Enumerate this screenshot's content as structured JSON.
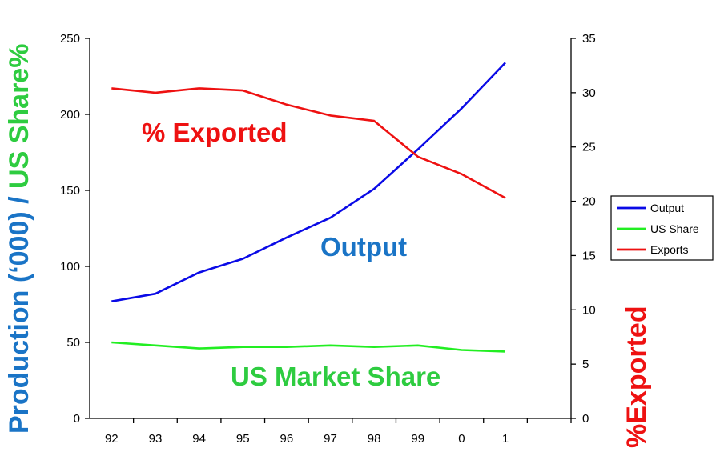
{
  "chart_data": {
    "type": "line",
    "categories": [
      "92",
      "93",
      "94",
      "95",
      "96",
      "97",
      "98",
      "99",
      "0",
      "1"
    ],
    "y_left": {
      "ylim": [
        0,
        250
      ],
      "ticks": [
        "0",
        "50",
        "100",
        "150",
        "200",
        "250"
      ]
    },
    "y_right": {
      "ylim": [
        0,
        35
      ],
      "ticks": [
        "0",
        "5",
        "10",
        "15",
        "20",
        "25",
        "30",
        "35"
      ]
    },
    "ylabel_left_parts": [
      {
        "text": "Production (‘000)",
        "color": "#1a74c6"
      },
      {
        "text": " / ",
        "color": "#1a74c6"
      },
      {
        "text": "US Share%",
        "color": "#2ecc40"
      }
    ],
    "ylabel_right": {
      "text": "%Exported",
      "color": "#ee1111"
    },
    "series": [
      {
        "name": "Output",
        "axis": "left",
        "color": "#0a0ae6",
        "values": [
          77,
          82,
          96,
          105,
          119,
          132,
          151,
          177,
          204,
          234
        ]
      },
      {
        "name": "US Share",
        "axis": "left",
        "color": "#22ee22",
        "values": [
          50,
          48,
          46,
          47,
          47,
          48,
          47,
          48,
          45,
          44
        ]
      },
      {
        "name": "Exports",
        "axis": "right",
        "color": "#ee1111",
        "values": [
          30.4,
          30.0,
          30.4,
          30.2,
          28.9,
          27.9,
          27.4,
          24.1,
          22.5,
          20.3
        ]
      }
    ],
    "annotations": [
      {
        "text": "% Exported",
        "color": "#ee1111"
      },
      {
        "text": "Output",
        "color": "#1a74c6"
      },
      {
        "text": "US Market Share",
        "color": "#2ecc40"
      }
    ],
    "legend": {
      "placement": "right"
    },
    "grid": false
  }
}
